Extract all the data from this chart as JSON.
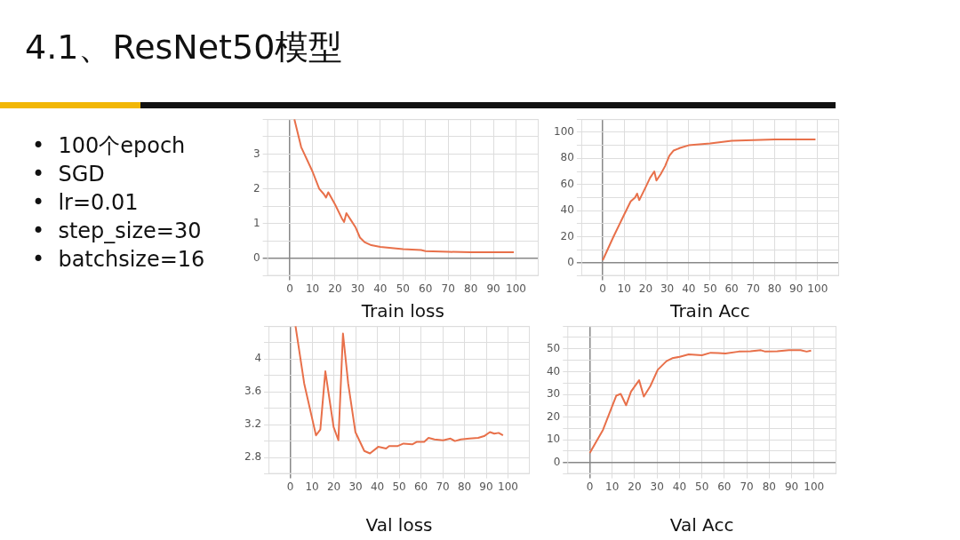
{
  "chart_data": [
    {
      "type": "other",
      "title": "4.1、ResNet50模型",
      "annotations": [
        "•  100个epoch",
        "•  SGD",
        "•  lr=0.01",
        "•  step_size=30",
        "•  batchsize=16"
      ]
    },
    {
      "type": "line",
      "xlabel": "Train loss",
      "marker": "none",
      "grid": true,
      "xlim": [
        -10,
        110
      ],
      "ylim": [
        -0.5,
        4
      ],
      "xticks": [
        0,
        10,
        20,
        30,
        40,
        50,
        60,
        70,
        80,
        90,
        100
      ],
      "yticks": [
        {
          "value": -0.5,
          "label": null
        },
        0,
        {
          "value": 0.5,
          "label": null
        },
        1,
        {
          "value": 1.5,
          "label": null
        },
        2,
        {
          "value": 2.5,
          "label": null
        },
        3,
        {
          "value": 3.5,
          "label": null
        },
        {
          "value": 4,
          "label": null
        }
      ],
      "series": [
        {
          "color": "#e8704a",
          "x": [
            2,
            5,
            10,
            13,
            15,
            16,
            17,
            20,
            23,
            24,
            25,
            27,
            29,
            31,
            33,
            36,
            40,
            50,
            58,
            60,
            70,
            80,
            90,
            99
          ],
          "values": [
            4.0,
            3.2,
            2.5,
            2.0,
            1.85,
            1.75,
            1.9,
            1.55,
            1.15,
            1.05,
            1.3,
            1.1,
            0.9,
            0.6,
            0.47,
            0.38,
            0.33,
            0.27,
            0.24,
            0.21,
            0.19,
            0.18,
            0.18,
            0.18
          ]
        }
      ]
    },
    {
      "type": "line",
      "xlabel": "Train Acc",
      "marker": "none",
      "grid": true,
      "xlim": [
        -10,
        110
      ],
      "ylim": [
        -10,
        110
      ],
      "xticks": [
        0,
        10,
        20,
        30,
        40,
        50,
        60,
        70,
        80,
        90,
        100
      ],
      "yticks": [
        {
          "value": -10,
          "label": null
        },
        0,
        {
          "value": 10,
          "label": null
        },
        20,
        {
          "value": 30,
          "label": null
        },
        40,
        {
          "value": 50,
          "label": null
        },
        60,
        {
          "value": 70,
          "label": null
        },
        80,
        {
          "value": 90,
          "label": null
        },
        100,
        {
          "value": 110,
          "label": null
        }
      ],
      "series": [
        {
          "color": "#e8704a",
          "x": [
            0,
            5,
            10,
            13,
            15,
            16,
            17,
            20,
            22,
            24,
            25,
            27,
            29,
            31,
            33,
            36,
            40,
            50,
            60,
            70,
            80,
            90,
            99
          ],
          "values": [
            2,
            20,
            37,
            47,
            50,
            53,
            48,
            58,
            65,
            70,
            63,
            68,
            74,
            82,
            86,
            88,
            90,
            91.5,
            93.5,
            94,
            94.5,
            94.5,
            94.5
          ]
        }
      ]
    },
    {
      "type": "line",
      "xlabel": "Val loss",
      "marker": "none",
      "grid": true,
      "xlim": [
        -10,
        110
      ],
      "ylim": [
        2.6,
        4.4
      ],
      "xticks": [
        0,
        10,
        20,
        30,
        40,
        50,
        60,
        70,
        80,
        90,
        100
      ],
      "yticks": [
        {
          "value": 2.6,
          "label": null
        },
        2.8,
        {
          "value": 3.0,
          "label": null
        },
        3.2,
        {
          "value": 3.4,
          "label": null
        },
        3.6,
        {
          "value": 3.8,
          "label": null
        },
        4,
        {
          "value": 4.2,
          "label": null
        },
        {
          "value": 4.4,
          "label": null
        }
      ],
      "series": [
        {
          "color": "#e8704a",
          "x": [
            2.4,
            6.4,
            11.8,
            13.8,
            16.1,
            19.9,
            22.1,
            24.2,
            26.6,
            29.9,
            34,
            36.6,
            40.4,
            44,
            45.4,
            49.4,
            52,
            56,
            58,
            61.5,
            63.5,
            66.2,
            70.2,
            73.6,
            75.6,
            78.3,
            82.3,
            86.3,
            89,
            91.7,
            93.7,
            95.7,
            97.7
          ],
          "values": [
            4.4,
            3.7,
            3.07,
            3.14,
            3.85,
            3.17,
            3.01,
            4.31,
            3.7,
            3.11,
            2.88,
            2.85,
            2.93,
            2.91,
            2.94,
            2.94,
            2.97,
            2.96,
            2.99,
            2.99,
            3.04,
            3.02,
            3.01,
            3.03,
            3.0,
            3.02,
            3.03,
            3.04,
            3.06,
            3.11,
            3.09,
            3.1,
            3.07
          ]
        }
      ]
    },
    {
      "type": "line",
      "xlabel": "Val Acc",
      "marker": "none",
      "grid": true,
      "xlim": [
        -10,
        110
      ],
      "ylim": [
        -5,
        60
      ],
      "xticks": [
        0,
        10,
        20,
        30,
        40,
        50,
        60,
        70,
        80,
        90,
        100
      ],
      "yticks": [
        {
          "value": -5,
          "label": null
        },
        0,
        {
          "value": 5,
          "label": null
        },
        10,
        {
          "value": 15,
          "label": null
        },
        20,
        {
          "value": 25,
          "label": null
        },
        30,
        {
          "value": 35,
          "label": null
        },
        40,
        {
          "value": 45,
          "label": null
        },
        50,
        {
          "value": 55,
          "label": null
        },
        {
          "value": 60,
          "label": null
        }
      ],
      "series": [
        {
          "color": "#e8704a",
          "x": [
            0,
            5.9,
            11.8,
            13.8,
            16.2,
            18.4,
            22,
            24.1,
            27,
            30.3,
            34.2,
            36.8,
            40.1,
            44.1,
            50,
            53.9,
            57.2,
            60.5,
            66.4,
            71.7,
            76.3,
            78.3,
            83.6,
            88.8,
            94,
            96.7,
            98.7
          ],
          "values": [
            4.2,
            14.4,
            29.4,
            30.2,
            25.2,
            31.2,
            36.2,
            29,
            33.6,
            40.8,
            44.6,
            45.9,
            46.5,
            47.6,
            47.2,
            48.3,
            48.2,
            48,
            48.8,
            48.9,
            49.4,
            48.8,
            48.9,
            49.4,
            49.4,
            48.8,
            49.2
          ]
        }
      ]
    }
  ]
}
